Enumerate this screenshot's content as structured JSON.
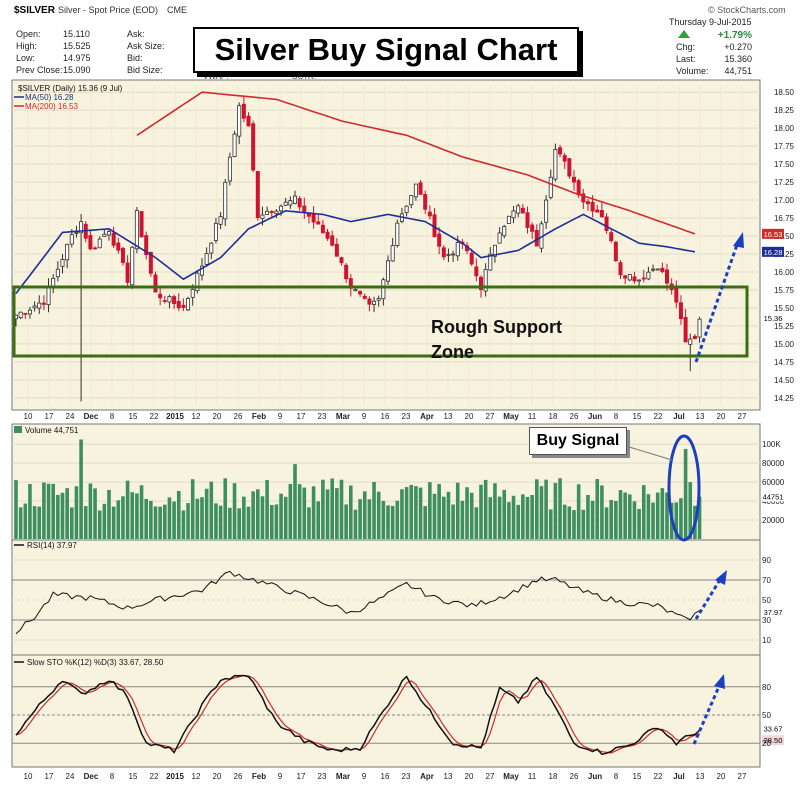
{
  "header": {
    "symbol": "$SILVER",
    "desc": "Silver - Spot Price (EOD)",
    "exchange": "CME",
    "brand": "© StockCharts.com",
    "date": "Thursday 9-Jul-2015",
    "change_pct": "+1.79%",
    "open_label": "Open:",
    "open": "15.110",
    "high_label": "High:",
    "high": "15.525",
    "low_label": "Low:",
    "low": "14.975",
    "prev_label": "Prev Close:",
    "prev": "15.090",
    "ask_label": "Ask:",
    "asksize_label": "Ask Size:",
    "bid_label": "Bid:",
    "bidsize_label": "Bid Size:",
    "vwap": "VWAP:",
    "sov": "SCTR:",
    "chg_label": "Chg:",
    "chg": "+0.270",
    "last_label": "Last:",
    "last": "15.360",
    "vol_label": "Volume:",
    "vol": "44,751"
  },
  "annotations": {
    "title": "Silver Buy Signal Chart",
    "support_line1": "Rough Support",
    "support_line2": "Zone",
    "buy_signal": "Buy Signal"
  },
  "colors": {
    "up": "#2f2f2f",
    "down": "#d1132f",
    "ma50": "#1f2d9a",
    "ma200": "#d12a2a",
    "volume": "#3e8f60",
    "support": "#3a6e12",
    "arrow": "#1b3fc4",
    "panel_bg": "#f7f3df"
  },
  "chart_data": [
    {
      "type": "candlestick",
      "title": "$SILVER (Daily) 15.36 (9 Jul)",
      "legend": [
        "$SILVER (Daily) 15.36 (9 Jul)",
        "MA(50) 16.28",
        "MA(200) 16.53"
      ],
      "ylim": [
        14.15,
        18.6
      ],
      "y_ticks": [
        "18.50",
        "18.25",
        "18.00",
        "17.75",
        "17.50",
        "17.25",
        "17.00",
        "16.75",
        "16.50",
        "16.25",
        "16.00",
        "15.75",
        "15.50",
        "15.25",
        "15.00",
        "14.75",
        "14.50",
        "14.25"
      ],
      "x_ticks": [
        "10",
        "17",
        "24",
        "Dec",
        "8",
        "15",
        "22",
        "2015",
        "12",
        "20",
        "26",
        "Feb",
        "9",
        "17",
        "23",
        "Mar",
        "9",
        "16",
        "23",
        "Apr",
        "13",
        "20",
        "27",
        "May",
        "11",
        "18",
        "26",
        "Jun",
        "8",
        "15",
        "22",
        "Jul",
        "13",
        "20",
        "27"
      ],
      "bold_ticks": [
        "Dec",
        "2015",
        "Feb",
        "Mar",
        "Apr",
        "May",
        "Jun",
        "Jul"
      ],
      "price_tags": {
        "ma200": "16.53",
        "ma50": "16.28",
        "last": "15.36"
      },
      "support_zone": [
        14.75,
        15.65
      ],
      "close_anchors": [
        [
          0,
          15.4
        ],
        [
          6,
          15.6
        ],
        [
          12,
          16.5
        ],
        [
          14,
          16.7
        ],
        [
          16,
          16.3
        ],
        [
          20,
          16.6
        ],
        [
          24,
          15.9
        ],
        [
          26,
          16.8
        ],
        [
          30,
          15.7
        ],
        [
          36,
          15.5
        ],
        [
          40,
          16.1
        ],
        [
          44,
          16.8
        ],
        [
          46,
          17.6
        ],
        [
          48,
          18.3
        ],
        [
          50,
          18.0
        ],
        [
          52,
          16.8
        ],
        [
          56,
          16.9
        ],
        [
          60,
          17.0
        ],
        [
          64,
          16.7
        ],
        [
          68,
          16.4
        ],
        [
          72,
          15.8
        ],
        [
          76,
          15.5
        ],
        [
          78,
          15.6
        ],
        [
          82,
          16.7
        ],
        [
          86,
          17.2
        ],
        [
          88,
          16.9
        ],
        [
          92,
          16.2
        ],
        [
          96,
          16.4
        ],
        [
          100,
          15.8
        ],
        [
          104,
          16.6
        ],
        [
          108,
          16.9
        ],
        [
          112,
          16.4
        ],
        [
          116,
          17.7
        ],
        [
          118,
          17.5
        ],
        [
          122,
          17.0
        ],
        [
          126,
          16.8
        ],
        [
          130,
          16.0
        ],
        [
          134,
          15.9
        ],
        [
          138,
          16.1
        ],
        [
          142,
          15.6
        ],
        [
          144,
          15.0
        ],
        [
          146,
          15.1
        ],
        [
          147,
          15.36
        ]
      ],
      "ma50_anchors": [
        [
          0,
          15.7
        ],
        [
          10,
          16.55
        ],
        [
          20,
          16.6
        ],
        [
          30,
          16.2
        ],
        [
          36,
          15.9
        ],
        [
          44,
          16.2
        ],
        [
          50,
          16.6
        ],
        [
          58,
          16.85
        ],
        [
          66,
          16.8
        ],
        [
          72,
          16.7
        ],
        [
          80,
          16.8
        ],
        [
          88,
          16.7
        ],
        [
          96,
          16.4
        ],
        [
          100,
          16.2
        ],
        [
          108,
          16.3
        ],
        [
          116,
          16.6
        ],
        [
          122,
          16.8
        ],
        [
          128,
          16.6
        ],
        [
          134,
          16.4
        ],
        [
          140,
          16.35
        ],
        [
          146,
          16.28
        ]
      ],
      "ma200_anchors": [
        [
          26,
          17.9
        ],
        [
          40,
          18.5
        ],
        [
          56,
          18.4
        ],
        [
          70,
          18.1
        ],
        [
          84,
          17.9
        ],
        [
          96,
          17.6
        ],
        [
          110,
          17.35
        ],
        [
          120,
          17.1
        ],
        [
          132,
          16.85
        ],
        [
          146,
          16.53
        ]
      ]
    },
    {
      "type": "bar",
      "title": "Volume 44,751",
      "ylim": [
        0,
        115000
      ],
      "y_ticks": [
        "100K",
        "80000",
        "60000",
        "40000",
        "20000"
      ],
      "last_tag": "44751"
    },
    {
      "type": "line",
      "title": "RSI(14) 37.97",
      "ylim": [
        0,
        100
      ],
      "y_ticks": [
        "90",
        "70",
        "50",
        "30",
        "10"
      ],
      "last_tag": "37.97",
      "anchors": [
        [
          0,
          18
        ],
        [
          4,
          33
        ],
        [
          8,
          55
        ],
        [
          16,
          52
        ],
        [
          24,
          42
        ],
        [
          30,
          50
        ],
        [
          40,
          60
        ],
        [
          46,
          78
        ],
        [
          50,
          72
        ],
        [
          58,
          60
        ],
        [
          66,
          48
        ],
        [
          72,
          37
        ],
        [
          78,
          50
        ],
        [
          84,
          66
        ],
        [
          90,
          52
        ],
        [
          98,
          44
        ],
        [
          106,
          56
        ],
        [
          112,
          70
        ],
        [
          116,
          70
        ],
        [
          122,
          58
        ],
        [
          130,
          48
        ],
        [
          138,
          44
        ],
        [
          144,
          30
        ],
        [
          147,
          38
        ]
      ]
    },
    {
      "type": "line",
      "title": "Slow STO %K(12) %D(3) 33.67, 28.50",
      "ylim": [
        0,
        100
      ],
      "y_ticks": [
        "80",
        "50",
        "33.67",
        "28.50",
        "20"
      ],
      "k_anchors": [
        [
          0,
          30
        ],
        [
          5,
          60
        ],
        [
          10,
          88
        ],
        [
          14,
          72
        ],
        [
          20,
          88
        ],
        [
          24,
          70
        ],
        [
          28,
          20
        ],
        [
          34,
          12
        ],
        [
          40,
          60
        ],
        [
          44,
          88
        ],
        [
          50,
          92
        ],
        [
          56,
          42
        ],
        [
          62,
          22
        ],
        [
          68,
          12
        ],
        [
          74,
          15
        ],
        [
          80,
          62
        ],
        [
          84,
          92
        ],
        [
          88,
          60
        ],
        [
          94,
          20
        ],
        [
          100,
          15
        ],
        [
          104,
          78
        ],
        [
          108,
          64
        ],
        [
          112,
          90
        ],
        [
          116,
          58
        ],
        [
          120,
          20
        ],
        [
          126,
          10
        ],
        [
          132,
          18
        ],
        [
          138,
          38
        ],
        [
          142,
          20
        ],
        [
          147,
          34
        ]
      ]
    }
  ]
}
